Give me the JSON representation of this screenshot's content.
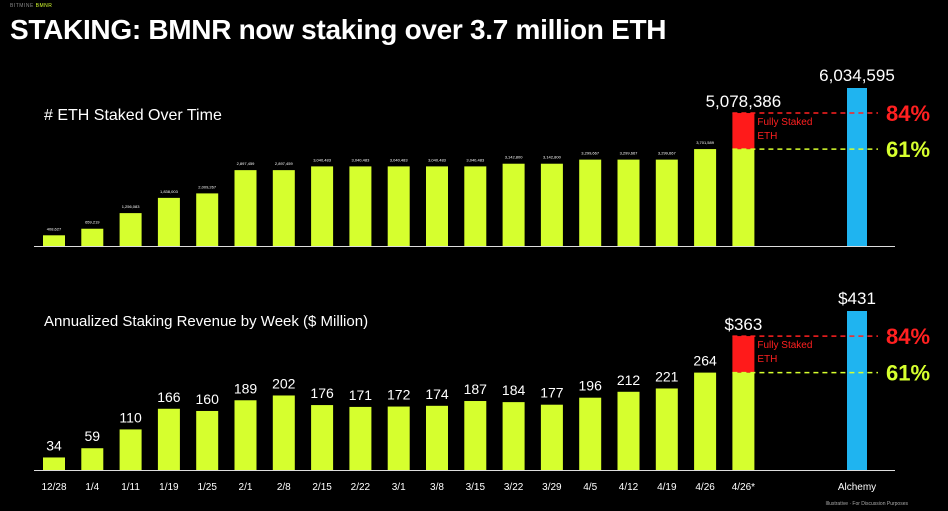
{
  "header": {
    "brand_name": "BITMINE",
    "brand_ticker": "BMNR",
    "title": "STAKING: BMNR now staking over 3.7 million ETH"
  },
  "footnote": "Illustrative · For Discussion Purposes",
  "colors": {
    "bar": "#d6ff2e",
    "fully_staked": "#ff1a1a",
    "alchemy": "#1fb4f0",
    "pct84": "#ff2020",
    "pct61": "#d6ff2e",
    "axis": "#dddddd"
  },
  "chart_data": [
    {
      "type": "bar",
      "title": "# ETH Staked Over Time",
      "categories": [
        "12/28",
        "1/4",
        "1/11",
        "1/19",
        "1/25",
        "2/1",
        "2/8",
        "2/15",
        "2/22",
        "3/1",
        "3/8",
        "3/15",
        "3/22",
        "3/29",
        "4/5",
        "4/12",
        "4/19",
        "4/26",
        "4/26*"
      ],
      "values": [
        408627,
        659219,
        1256083,
        1838003,
        2009267,
        2897459,
        2897459,
        3040483,
        3040483,
        3040483,
        3040483,
        3040483,
        3142800,
        3142800,
        3299667,
        3299667,
        3299667,
        3701589,
        3701589
      ],
      "value_labels": [
        "408,627",
        "659,219",
        "1,256,083",
        "1,838,003",
        "2,009,267",
        "2,897,459",
        "2,897,459",
        "3,040,483",
        "3,040,483",
        "3,040,483",
        "3,040,483",
        "3,040,483",
        "3,142,800",
        "3,142,800",
        "3,299,667",
        "3,299,667",
        "3,299,667",
        "3,701,589",
        ""
      ],
      "fully_staked_total": 5078386,
      "fully_staked_total_label": "5,078,386",
      "fully_staked_label": "Fully Staked ETH",
      "alchemy_value": 6034595,
      "alchemy_label": "6,034,595",
      "pct84_label": "84%",
      "pct61_label": "61%",
      "ylim": [
        0,
        6034595
      ]
    },
    {
      "type": "bar",
      "title": "Annualized Staking Revenue by Week ($ Million)",
      "categories": [
        "12/28",
        "1/4",
        "1/11",
        "1/19",
        "1/25",
        "2/1",
        "2/8",
        "2/15",
        "2/22",
        "3/1",
        "3/8",
        "3/15",
        "3/22",
        "3/29",
        "4/5",
        "4/12",
        "4/19",
        "4/26",
        "4/26*"
      ],
      "values": [
        34,
        59,
        110,
        166,
        160,
        189,
        202,
        176,
        171,
        172,
        174,
        187,
        184,
        177,
        196,
        212,
        221,
        264,
        264
      ],
      "value_labels": [
        "34",
        "59",
        "110",
        "166",
        "160",
        "189",
        "202",
        "176",
        "171",
        "172",
        "174",
        "187",
        "184",
        "177",
        "196",
        "212",
        "221",
        "264",
        ""
      ],
      "fully_staked_total": 363,
      "fully_staked_total_label": "$363",
      "fully_staked_label": "Fully Staked ETH",
      "alchemy_value": 431,
      "alchemy_label": "$431",
      "alchemy_category": "Alchemy",
      "pct84_label": "84%",
      "pct61_label": "61%",
      "ylim": [
        0,
        431
      ]
    }
  ]
}
